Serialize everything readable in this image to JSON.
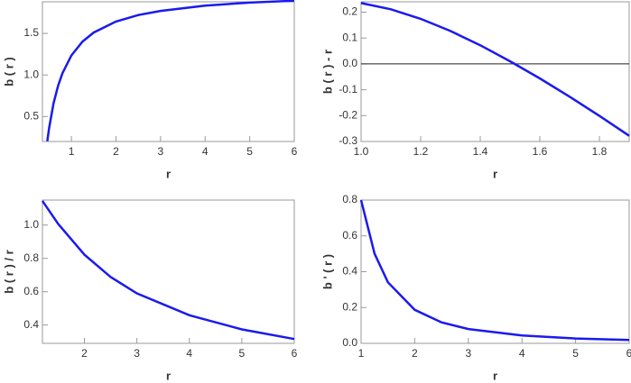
{
  "chart_data": [
    {
      "type": "line",
      "xlabel": "r",
      "ylabel": "b ( r )",
      "color": "#1a1aee",
      "x": [
        0.46,
        0.5,
        0.6,
        0.7,
        0.8,
        1.0,
        1.25,
        1.5,
        2,
        2.5,
        3,
        4,
        5,
        6
      ],
      "values": [
        0.203,
        0.36,
        0.658,
        0.868,
        1.022,
        1.235,
        1.402,
        1.51,
        1.643,
        1.721,
        1.771,
        1.834,
        1.87,
        1.893
      ],
      "xlim": [
        0.35,
        6
      ],
      "ylim": [
        0.2,
        1.88
      ],
      "xticks": [
        1,
        2,
        3,
        4,
        5,
        6
      ],
      "yticks": [
        0.5,
        {
          "value": 1,
          "label": "1.0"
        },
        1.5
      ]
    },
    {
      "type": "line",
      "xlabel": "r",
      "ylabel": "b ( r ) - r",
      "color": "#1a1aee",
      "zero_line": true,
      "x": [
        1.0,
        1.1,
        1.2,
        1.3,
        1.4,
        1.5,
        1.6,
        1.7,
        1.8,
        1.9
      ],
      "values": [
        0.235,
        0.211,
        0.174,
        0.127,
        0.072,
        0.01,
        -0.056,
        -0.127,
        -0.201,
        -0.278
      ],
      "xlim": [
        1.0,
        1.9
      ],
      "ylim": [
        -0.3,
        0.24
      ],
      "xticks": [
        {
          "value": 1,
          "label": "1.0"
        },
        1.2,
        1.4,
        1.6,
        1.8
      ],
      "yticks": [
        -0.3,
        -0.2,
        -0.1,
        {
          "value": 0,
          "label": "0.0"
        },
        0.1,
        0.2
      ]
    },
    {
      "type": "line",
      "xlabel": "r",
      "ylabel": "b ( r )  /  r",
      "color": "#1a1aee",
      "x": [
        1.2,
        1.5,
        2,
        2.5,
        3,
        4,
        5,
        6
      ],
      "values": [
        1.145,
        1.007,
        0.822,
        0.688,
        0.59,
        0.459,
        0.374,
        0.316
      ],
      "xlim": [
        1.2,
        6
      ],
      "ylim": [
        0.29,
        1.15
      ],
      "xticks": [
        2,
        3,
        4,
        5,
        6
      ],
      "yticks": [
        0.4,
        0.6,
        0.8,
        {
          "value": 1,
          "label": "1.0"
        }
      ]
    },
    {
      "type": "line",
      "xlabel": "r",
      "ylabel": "b ' ( r )",
      "color": "#1a1aee",
      "x": [
        1,
        1.25,
        1.5,
        2,
        2.5,
        3,
        4,
        5,
        6
      ],
      "values": [
        0.8,
        0.501,
        0.341,
        0.187,
        0.117,
        0.08,
        0.044,
        0.027,
        0.019
      ],
      "xlim": [
        1,
        6
      ],
      "ylim": [
        0,
        0.8
      ],
      "xticks": [
        1,
        2,
        3,
        4,
        5,
        6
      ],
      "yticks": [
        {
          "value": 0,
          "label": "0.0"
        },
        0.2,
        0.4,
        0.6,
        0.8
      ]
    }
  ]
}
